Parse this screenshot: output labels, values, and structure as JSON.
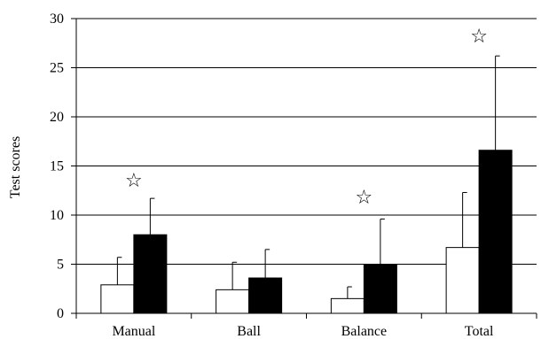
{
  "chart_data": {
    "type": "bar",
    "title": "",
    "xlabel": "",
    "ylabel": "Test scores",
    "ylim": [
      0,
      30
    ],
    "yticks": [
      0,
      5,
      10,
      15,
      20,
      25,
      30
    ],
    "grid": true,
    "categories": [
      "Manual",
      "Ball",
      "Balance",
      "Total"
    ],
    "series": [
      {
        "fill": "#ffffff",
        "values": [
          2.9,
          2.4,
          1.5,
          6.7
        ],
        "errors": [
          2.8,
          2.8,
          1.2,
          5.6
        ]
      },
      {
        "fill": "#000000",
        "values": [
          8.0,
          3.6,
          5.0,
          16.6
        ],
        "errors": [
          3.7,
          2.9,
          4.6,
          9.6
        ]
      }
    ],
    "markers": [
      {
        "category": "Manual",
        "symbol": "☆",
        "y": 13.6
      },
      {
        "category": "Balance",
        "symbol": "☆",
        "y": 11.9
      },
      {
        "category": "Total",
        "symbol": "☆",
        "y": 28.3
      }
    ]
  }
}
